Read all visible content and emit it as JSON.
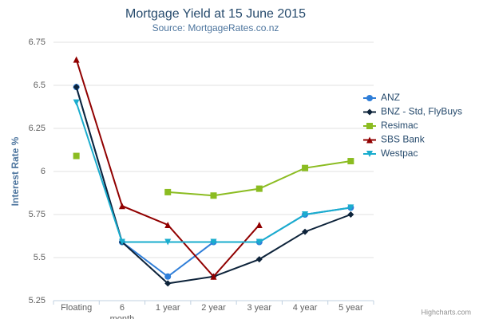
{
  "chart_data": {
    "type": "line",
    "title": "Mortgage Yield at 15 June 2015",
    "subtitle": "Source: MortgageRates.co.nz",
    "y_label": "Interest Rate %",
    "credits": "Highcharts.com",
    "categories": [
      "Floating",
      "6 month",
      "1 year",
      "2 year",
      "3 year",
      "4 year",
      "5 year"
    ],
    "ylim": [
      5.25,
      6.75
    ],
    "yticks": [
      5.25,
      5.5,
      5.75,
      6,
      6.25,
      6.5,
      6.75
    ],
    "grid": true,
    "legend": "right",
    "series": [
      {
        "name": "ANZ",
        "color": "#2f7ed8",
        "marker": "circle",
        "values": [
          6.49,
          5.59,
          5.39,
          5.59,
          5.59,
          5.75,
          5.79
        ]
      },
      {
        "name": "BNZ - Std, FlyBuys",
        "color": "#0d233a",
        "marker": "diamond",
        "values": [
          6.49,
          5.59,
          5.35,
          5.39,
          5.49,
          5.65,
          5.75
        ]
      },
      {
        "name": "Resimac",
        "color": "#8bbc21",
        "marker": "square",
        "values": [
          6.09,
          null,
          5.88,
          5.86,
          5.9,
          6.02,
          6.06
        ]
      },
      {
        "name": "SBS Bank",
        "color": "#910000",
        "marker": "triangle",
        "values": [
          6.65,
          5.8,
          5.69,
          5.39,
          5.69,
          null,
          null
        ]
      },
      {
        "name": "Westpac",
        "color": "#1aadce",
        "marker": "triangle-down",
        "values": [
          6.4,
          5.59,
          5.59,
          5.59,
          5.59,
          5.75,
          5.79
        ]
      }
    ]
  }
}
